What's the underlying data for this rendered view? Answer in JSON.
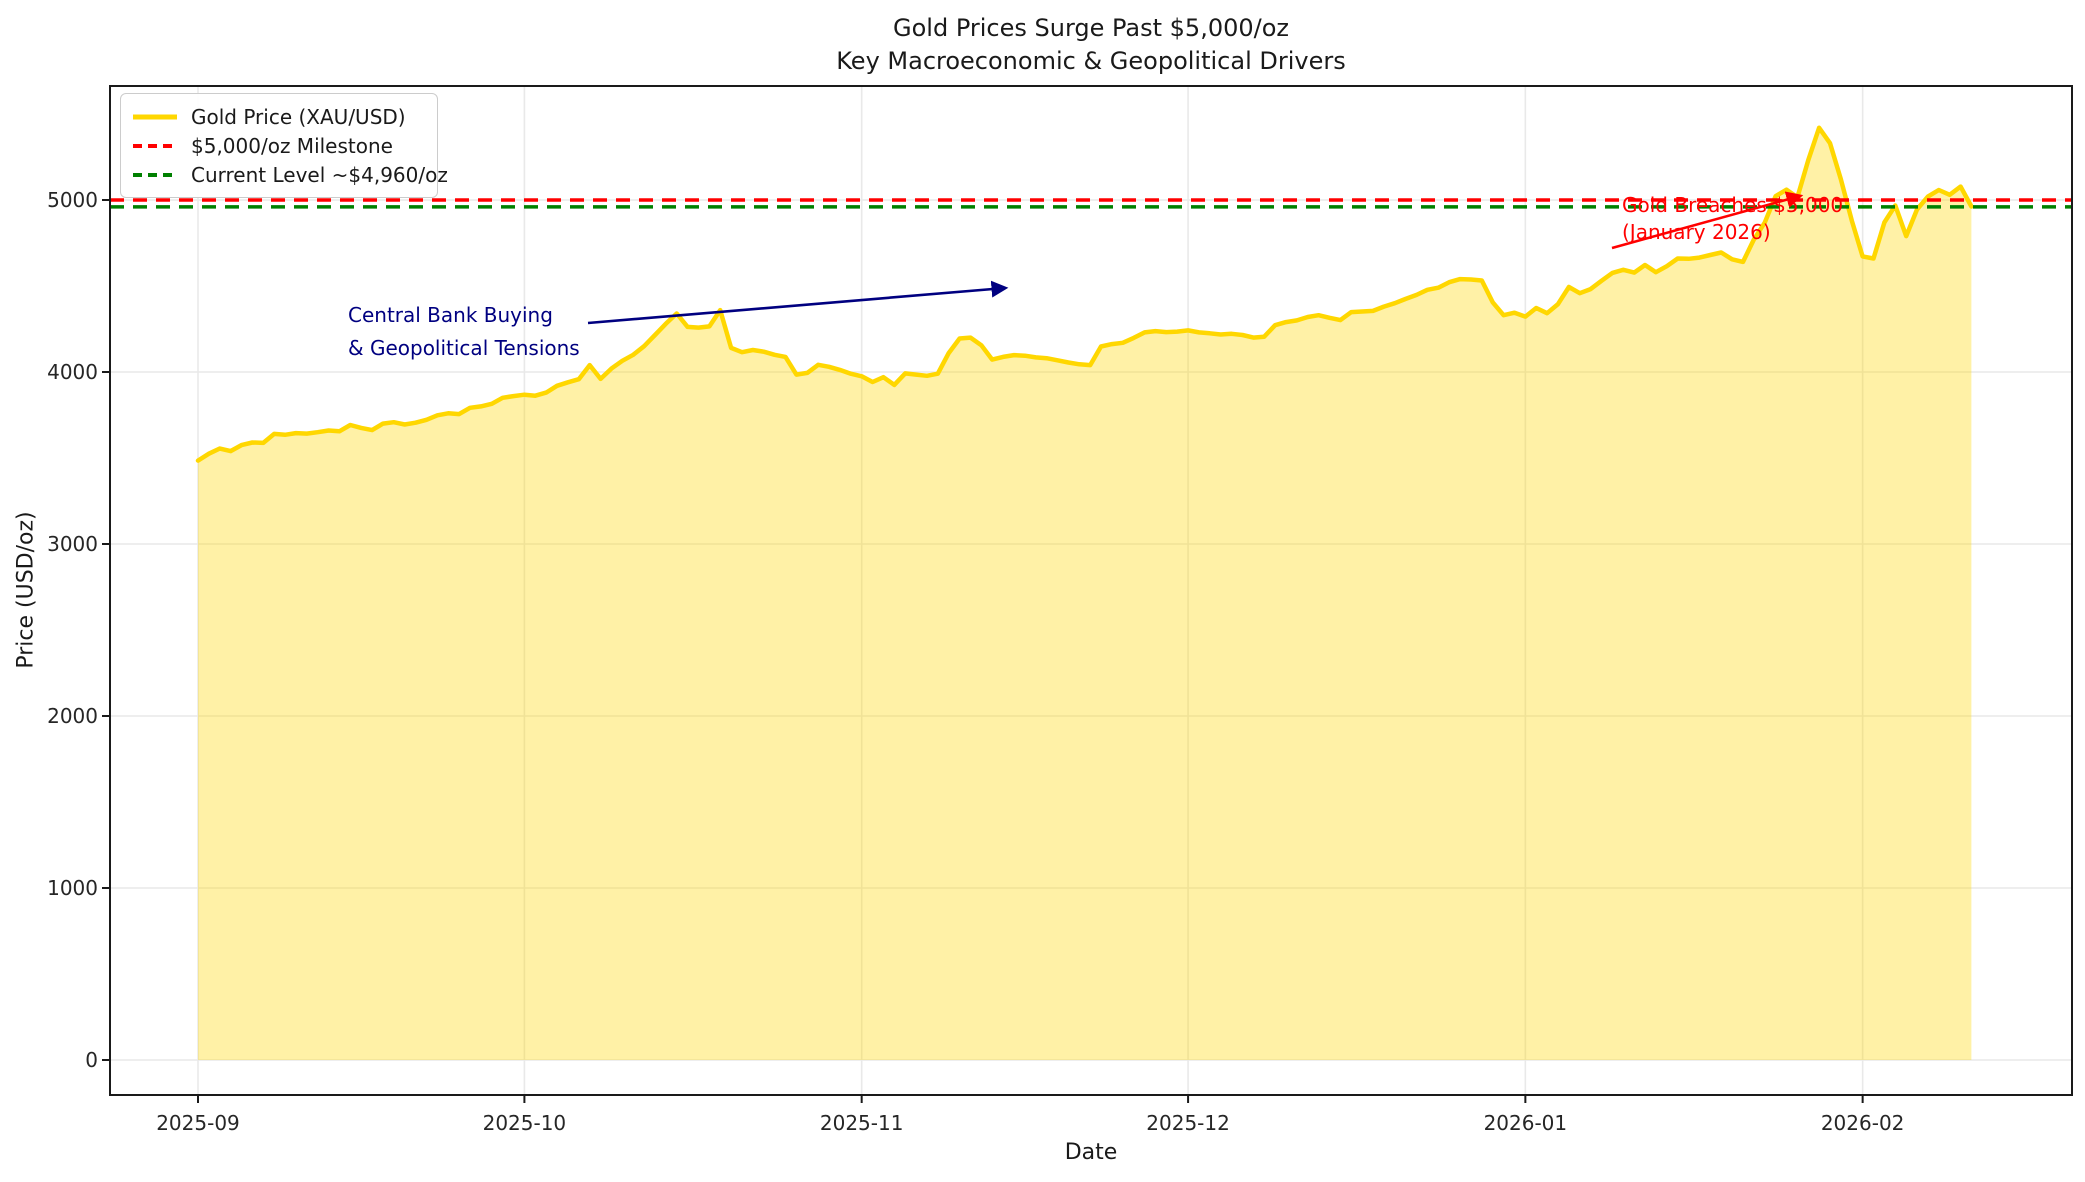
{
  "title": {
    "line1": "Gold Prices Surge Past $5,000/oz",
    "line2": "Key Macroeconomic & Geopolitical Drivers"
  },
  "axes": {
    "xlabel": "Date",
    "ylabel": "Price (USD/oz)"
  },
  "legend": {
    "items": [
      {
        "label": "Gold Price (XAU/USD)",
        "style": "solid",
        "color": "#FFD700"
      },
      {
        "label": "$5,000/oz Milestone",
        "style": "dashed",
        "color": "#FF0000"
      },
      {
        "label": "Current Level ~$4,960/oz",
        "style": "dashed",
        "color": "#008000"
      }
    ]
  },
  "annotations": {
    "central_bank": {
      "line1": "Central Bank Buying",
      "line2": "& Geopolitical Tensions",
      "color": "#000080"
    },
    "breach": {
      "line1": "Gold Breaches $5,000",
      "line2": "(January 2026)",
      "color": "#FF0000"
    }
  },
  "chart_data": {
    "type": "area",
    "title": "Gold Prices Surge Past $5,000/oz\nKey Macroeconomic & Geopolitical Drivers",
    "xlabel": "Date",
    "ylabel": "Price (USD/oz)",
    "x_start_date": "2025-09-01",
    "x_frequency": "daily",
    "series": [
      {
        "name": "Gold Price (XAU/USD)",
        "color": "#FFD700",
        "fill_alpha": 0.35,
        "values": [
          3485,
          3525,
          3555,
          3540,
          3575,
          3590,
          3588,
          3640,
          3635,
          3645,
          3642,
          3650,
          3660,
          3655,
          3692,
          3675,
          3662,
          3700,
          3708,
          3695,
          3705,
          3722,
          3748,
          3760,
          3755,
          3792,
          3800,
          3815,
          3850,
          3860,
          3868,
          3862,
          3880,
          3920,
          3940,
          3958,
          4040,
          3960,
          4020,
          4065,
          4100,
          4150,
          4215,
          4280,
          4340,
          4262,
          4258,
          4265,
          4360,
          4140,
          4115,
          4128,
          4118,
          4100,
          4088,
          3985,
          3995,
          4042,
          4030,
          4012,
          3990,
          3975,
          3942,
          3970,
          3925,
          3992,
          3985,
          3978,
          3990,
          4110,
          4195,
          4200,
          4155,
          4072,
          4088,
          4098,
          4095,
          4085,
          4080,
          4068,
          4055,
          4045,
          4040,
          4148,
          4162,
          4170,
          4198,
          4230,
          4238,
          4232,
          4235,
          4242,
          4230,
          4225,
          4218,
          4222,
          4215,
          4200,
          4205,
          4272,
          4290,
          4300,
          4320,
          4330,
          4315,
          4302,
          4348,
          4352,
          4355,
          4380,
          4400,
          4425,
          4448,
          4478,
          4490,
          4522,
          4540,
          4538,
          4532,
          4405,
          4330,
          4345,
          4322,
          4372,
          4342,
          4395,
          4494,
          4458,
          4482,
          4530,
          4576,
          4594,
          4578,
          4622,
          4580,
          4615,
          4660,
          4658,
          4665,
          4680,
          4695,
          4655,
          4640,
          4770,
          4868,
          5022,
          5060,
          5015,
          5230,
          5420,
          5330,
          5120,
          4880,
          4672,
          4660,
          4870,
          4968,
          4790,
          4945,
          5020,
          5058,
          5030,
          5078,
          4962
        ]
      }
    ],
    "reference_lines": [
      {
        "label": "$5,000/oz Milestone",
        "value": 5000,
        "color": "#FF0000",
        "style": "dashed"
      },
      {
        "label": "Current Level ~$4,960/oz",
        "value": 4960,
        "color": "#008000",
        "style": "dashed"
      }
    ],
    "yticks": [
      0,
      1000,
      2000,
      3000,
      4000,
      5000
    ],
    "xtick_labels": [
      "2025-09",
      "2025-10",
      "2025-11",
      "2025-12",
      "2026-01",
      "2026-02"
    ],
    "ylim": [
      -200,
      5660
    ],
    "grid": true,
    "legend_position": "upper left",
    "annotations": [
      {
        "text": "Central Bank Buying\n& Geopolitical Tensions",
        "color": "#000080",
        "arrow_to_date": "2025-11-15",
        "arrow_to_value": 4490
      },
      {
        "text": "Gold Breaches $5,000\n(January 2026)",
        "color": "#FF0000",
        "arrow_to_date": "2026-01-26",
        "arrow_to_value": 5000
      }
    ]
  }
}
